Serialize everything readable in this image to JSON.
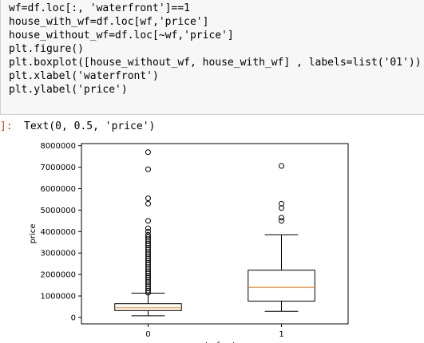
{
  "code_lines": [
    "wf=df.loc[:, 'waterfront']==1",
    "house_with_wf=df.loc[wf,'price']",
    "house_without_wf=df.loc[~wf,'price']",
    "plt.figure()",
    "plt.boxplot([house_without_wf, house_with_wf] , labels=list('01'))",
    "plt.xlabel('waterfront')",
    "plt.ylabel('price')"
  ],
  "output": {
    "prompt": "]:",
    "text": "Text(0, 0.5, 'price')"
  },
  "chart_data": {
    "type": "box",
    "xlabel": "waterfront",
    "ylabel": "price",
    "ylim": [
      -300000,
      8100000
    ],
    "yticks": [
      0,
      1000000,
      2000000,
      3000000,
      4000000,
      5000000,
      6000000,
      7000000,
      8000000
    ],
    "ytick_labels": [
      "0",
      "1000000",
      "2000000",
      "3000000",
      "4000000",
      "5000000",
      "6000000",
      "7000000",
      "8000000"
    ],
    "categories": [
      "0",
      "1"
    ],
    "boxes": [
      {
        "label": "0",
        "whisker_low": 78000,
        "q1": 320000,
        "median": 450000,
        "q3": 640000,
        "whisker_high": 1130000,
        "outliers": [
          1150000,
          1250000,
          1350000,
          1450000,
          1550000,
          1650000,
          1750000,
          1850000,
          1950000,
          2050000,
          2150000,
          2250000,
          2350000,
          2450000,
          2550000,
          2650000,
          2750000,
          2850000,
          2950000,
          3050000,
          3150000,
          3250000,
          3350000,
          3450000,
          3550000,
          3650000,
          3750000,
          3850000,
          4000000,
          4150000,
          4500000,
          5300000,
          5550000,
          6900000,
          7700000
        ]
      },
      {
        "label": "1",
        "whisker_low": 285000,
        "q1": 760000,
        "median": 1400000,
        "q3": 2200000,
        "whisker_high": 3850000,
        "outliers": [
          4500000,
          4650000,
          5100000,
          5300000,
          7060000
        ]
      }
    ],
    "colors": {
      "median": "#ff7f0e",
      "box": "#000000"
    }
  }
}
